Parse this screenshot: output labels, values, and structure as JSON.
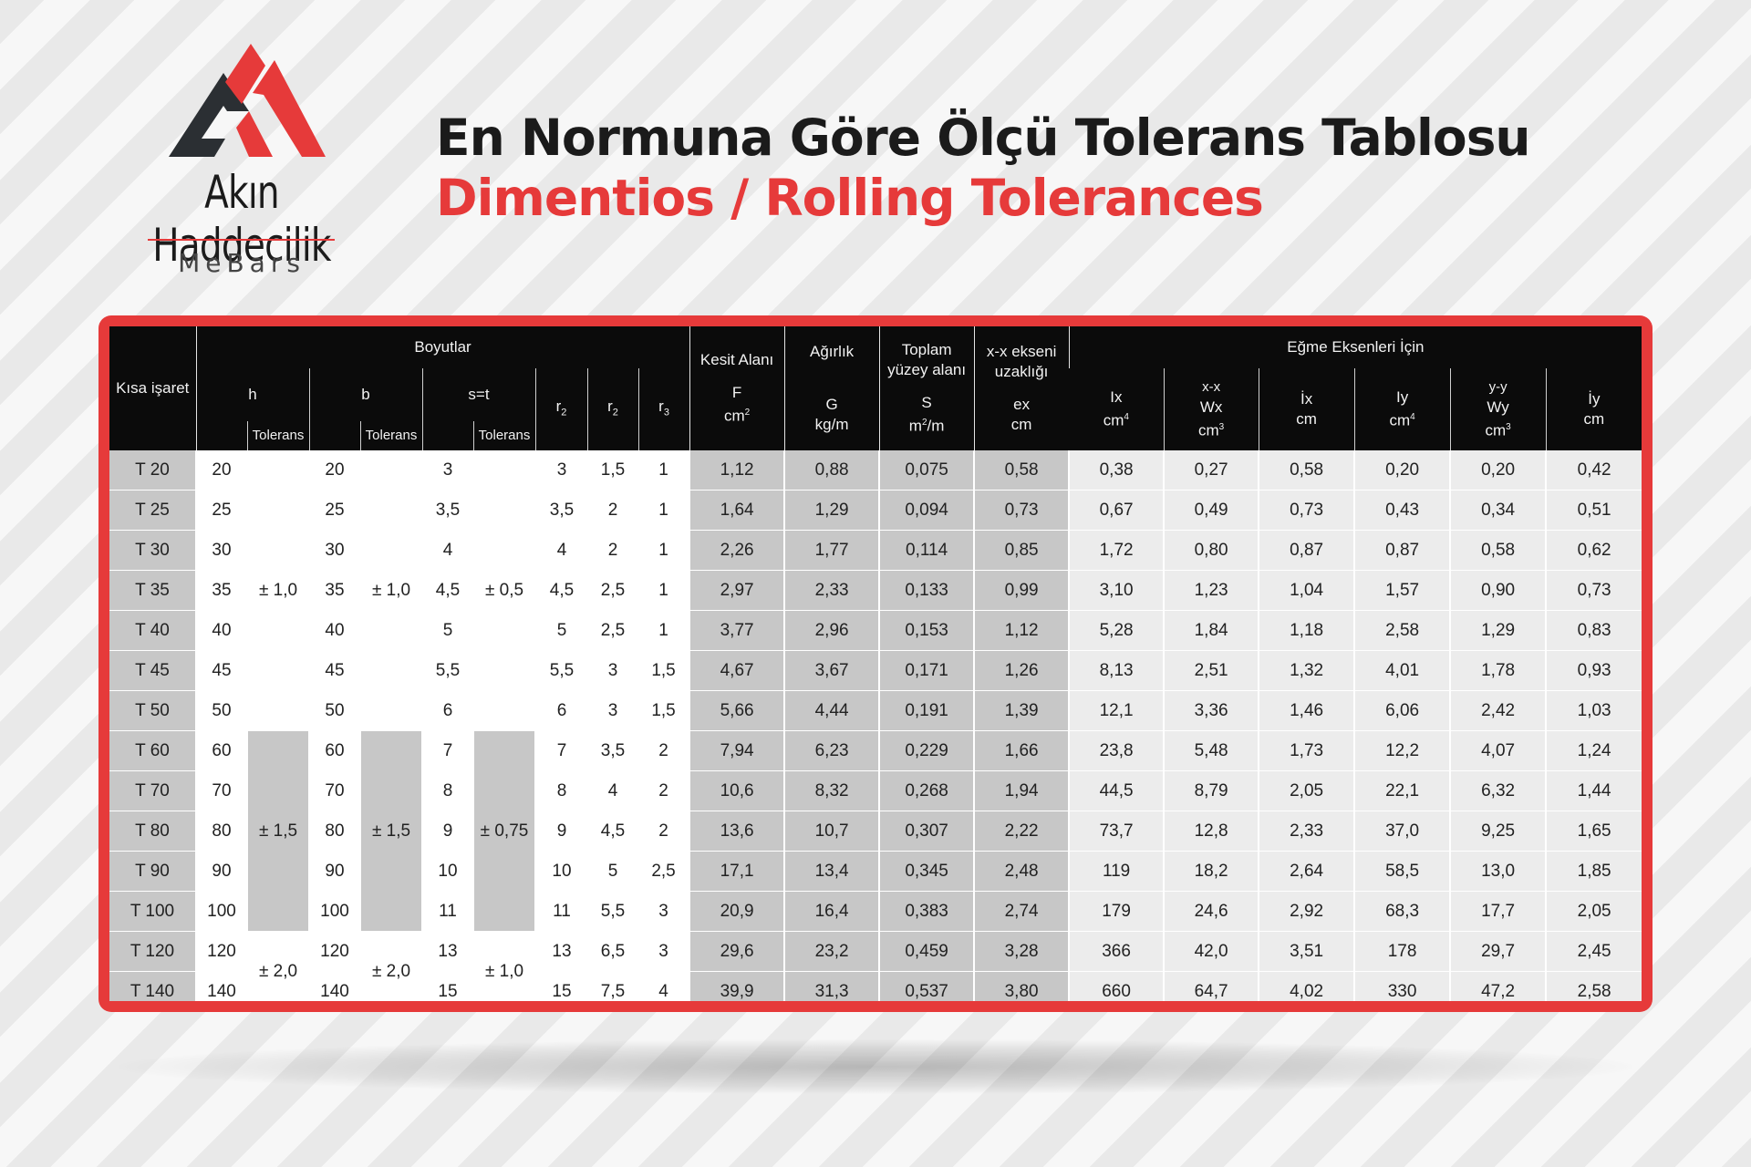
{
  "brand": {
    "name": "Akın Haddecilik",
    "sub": "MeBars"
  },
  "title": {
    "line1": "En Normuna Göre Ölçü Tolerans Tablosu",
    "line2": "Dimentios / Rolling Tolerances"
  },
  "colors": {
    "accent": "#e63a3a",
    "header_bg": "#0b0b0b",
    "gray_col": "#c7c7c7",
    "light_col": "#ececec"
  },
  "header": {
    "kisa": "Kısa işaret",
    "boyutlar": "Boyutlar",
    "h": "h",
    "b": "b",
    "st": "s=t",
    "tolerans": "Tolerans",
    "r2": "r",
    "r2_sub": "2",
    "r2b": "r",
    "r2b_sub": "2",
    "r3": "r",
    "r3_sub": "3",
    "kesit": "Kesit Alanı",
    "F": "F",
    "F_unit": "cm",
    "F_sup": "2",
    "agirlik": "Ağırlık",
    "G": "G",
    "G_unit": "kg/m",
    "toplam": "Toplam yüzey alanı",
    "S": "S",
    "S_unit": "m",
    "S_sup": "2",
    "S_tail": "/m",
    "xx": "x-x ekseni uzaklığı",
    "ex": "ex",
    "ex_unit": "cm",
    "egme": "Eğme Eksenleri İçin",
    "Ix": "Ix",
    "Ix_unit": "cm",
    "Ix_sup": "4",
    "Wx_axis": "x-x",
    "Wx": "Wx",
    "Wx_unit": "cm",
    "Wx_sup": "3",
    "ix": "İx",
    "ix_unit": "cm",
    "Iy": "Iy",
    "Iy_unit": "cm",
    "Iy_sup": "4",
    "Wy_axis": "y-y",
    "Wy": "Wy",
    "Wy_unit": "cm",
    "Wy_sup": "3",
    "iy": "İy",
    "iy_unit": "cm"
  },
  "tolerances": {
    "h": [
      "± 1,0",
      "± 1,5",
      "± 2,0"
    ],
    "b": [
      "± 1,0",
      "± 1,5",
      "± 2,0"
    ],
    "st": [
      "± 0,5",
      "± 0,75",
      "± 1,0"
    ]
  },
  "rows": [
    [
      "T 20",
      "20",
      "20",
      "3",
      "3",
      "1,5",
      "1",
      "1,12",
      "0,88",
      "0,075",
      "0,58",
      "0,38",
      "0,27",
      "0,58",
      "0,20",
      "0,20",
      "0,42"
    ],
    [
      "T 25",
      "25",
      "25",
      "3,5",
      "3,5",
      "2",
      "1",
      "1,64",
      "1,29",
      "0,094",
      "0,73",
      "0,67",
      "0,49",
      "0,73",
      "0,43",
      "0,34",
      "0,51"
    ],
    [
      "T 30",
      "30",
      "30",
      "4",
      "4",
      "2",
      "1",
      "2,26",
      "1,77",
      "0,114",
      "0,85",
      "1,72",
      "0,80",
      "0,87",
      "0,87",
      "0,58",
      "0,62"
    ],
    [
      "T 35",
      "35",
      "35",
      "4,5",
      "4,5",
      "2,5",
      "1",
      "2,97",
      "2,33",
      "0,133",
      "0,99",
      "3,10",
      "1,23",
      "1,04",
      "1,57",
      "0,90",
      "0,73"
    ],
    [
      "T 40",
      "40",
      "40",
      "5",
      "5",
      "2,5",
      "1",
      "3,77",
      "2,96",
      "0,153",
      "1,12",
      "5,28",
      "1,84",
      "1,18",
      "2,58",
      "1,29",
      "0,83"
    ],
    [
      "T 45",
      "45",
      "45",
      "5,5",
      "5,5",
      "3",
      "1,5",
      "4,67",
      "3,67",
      "0,171",
      "1,26",
      "8,13",
      "2,51",
      "1,32",
      "4,01",
      "1,78",
      "0,93"
    ],
    [
      "T 50",
      "50",
      "50",
      "6",
      "6",
      "3",
      "1,5",
      "5,66",
      "4,44",
      "0,191",
      "1,39",
      "12,1",
      "3,36",
      "1,46",
      "6,06",
      "2,42",
      "1,03"
    ],
    [
      "T 60",
      "60",
      "60",
      "7",
      "7",
      "3,5",
      "2",
      "7,94",
      "6,23",
      "0,229",
      "1,66",
      "23,8",
      "5,48",
      "1,73",
      "12,2",
      "4,07",
      "1,24"
    ],
    [
      "T 70",
      "70",
      "70",
      "8",
      "8",
      "4",
      "2",
      "10,6",
      "8,32",
      "0,268",
      "1,94",
      "44,5",
      "8,79",
      "2,05",
      "22,1",
      "6,32",
      "1,44"
    ],
    [
      "T 80",
      "80",
      "80",
      "9",
      "9",
      "4,5",
      "2",
      "13,6",
      "10,7",
      "0,307",
      "2,22",
      "73,7",
      "12,8",
      "2,33",
      "37,0",
      "9,25",
      "1,65"
    ],
    [
      "T 90",
      "90",
      "90",
      "10",
      "10",
      "5",
      "2,5",
      "17,1",
      "13,4",
      "0,345",
      "2,48",
      "119",
      "18,2",
      "2,64",
      "58,5",
      "13,0",
      "1,85"
    ],
    [
      "T 100",
      "100",
      "100",
      "11",
      "11",
      "5,5",
      "3",
      "20,9",
      "16,4",
      "0,383",
      "2,74",
      "179",
      "24,6",
      "2,92",
      "68,3",
      "17,7",
      "2,05"
    ],
    [
      "T 120",
      "120",
      "120",
      "13",
      "13",
      "6,5",
      "3",
      "29,6",
      "23,2",
      "0,459",
      "3,28",
      "366",
      "42,0",
      "3,51",
      "178",
      "29,7",
      "2,45"
    ],
    [
      "T 140",
      "140",
      "140",
      "15",
      "15",
      "7,5",
      "4",
      "39,9",
      "31,3",
      "0,537",
      "3,80",
      "660",
      "64,7",
      "4,02",
      "330",
      "47,2",
      "2,58"
    ]
  ]
}
